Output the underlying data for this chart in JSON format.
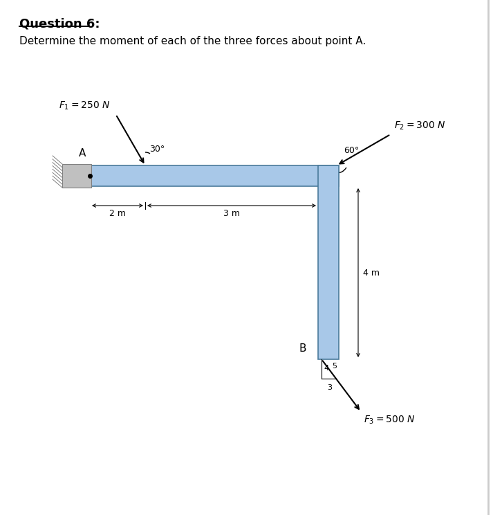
{
  "title": "Question 6:",
  "subtitle": "Determine the moment of each of the three forces about point A.",
  "bg_color": "#ffffff",
  "beam_color": "#a8c8e8",
  "beam_edge_color": "#4a7a9b",
  "wall_color": "#b8b8b8",
  "A_label": "A",
  "B_label": "B",
  "F1_label": "$F_1 = 250$ N",
  "F1_angle_label": "30°",
  "F2_label": "$F_2 = 300$ N",
  "F2_angle_label": "60°",
  "F3_label": "$F_3 = 500$ N",
  "F3_4": "4",
  "F3_3": "3",
  "F3_5": "5",
  "dim_2m": "2 m",
  "dim_3m": "3 m",
  "dim_4m": "4 m"
}
